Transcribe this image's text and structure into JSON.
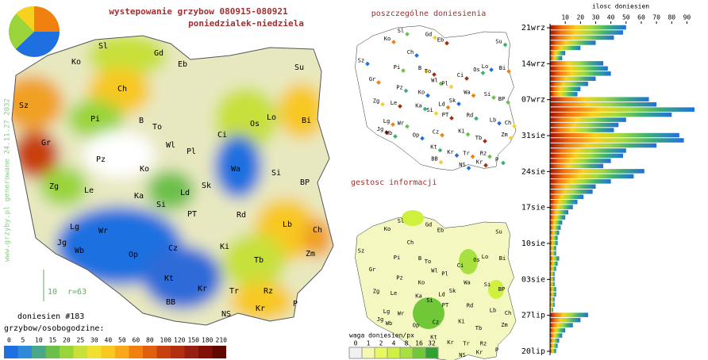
{
  "header": {
    "title": "wystepowanie grzybow 080915-080921",
    "subtitle": "poniedzialek-niedziela"
  },
  "watermark": "www.grzyby.pl generowane 24.11.27 2032",
  "scale_note": {
    "radius": "10",
    "label": "r=63"
  },
  "report_count": "doniesien #183",
  "panels": {
    "points": "poszczególne doniesienia",
    "density": "gestosc informacji"
  },
  "regions": [
    "Sz",
    "Ko",
    "Sl",
    "Gd",
    "Eb",
    "Su",
    "Ch",
    "Bi",
    "Pi",
    "B",
    "To",
    "Os",
    "Lo",
    "Gr",
    "Wl",
    "Pl",
    "Ci",
    "Pz",
    "Ko",
    "Wa",
    "Si",
    "Zg",
    "Le",
    "Ka",
    "Sk",
    "Ld",
    "BP",
    "Si",
    "PT",
    "Rd",
    "Lb",
    "Lg",
    "Wr",
    "Ch",
    "Jg",
    "Wb",
    "Op",
    "Cz",
    "Ki",
    "Zm",
    "Tb",
    "Kt",
    "Kr",
    "Tr",
    "Rz",
    "BB",
    "Kr",
    "P",
    "NS"
  ],
  "legend": {
    "title": "grzybow/osobogodzine:",
    "ticks": [
      0,
      5,
      10,
      15,
      20,
      25,
      30,
      40,
      50,
      60,
      80,
      100,
      120,
      150,
      180,
      210
    ],
    "colors": [
      "#1e6fe0",
      "#2f8ad8",
      "#4aa88a",
      "#6cc04a",
      "#9ad43a",
      "#c8e03a",
      "#f0e030",
      "#f8c820",
      "#f8a818",
      "#f08010",
      "#e06010",
      "#c84010",
      "#b03010",
      "#982010",
      "#801008",
      "#600800"
    ]
  },
  "density_legend": {
    "title": "waga doniesien/px",
    "ticks": [
      0,
      1,
      2,
      4,
      8,
      16,
      32
    ],
    "colors": [
      "#f0f0f0",
      "#f4f8b0",
      "#e8f860",
      "#d0f040",
      "#a8e040",
      "#70c838",
      "#30a030"
    ]
  },
  "chart_data": {
    "type": "bar",
    "title": "ilosc doniesien",
    "categories": [
      "21wrz",
      null,
      null,
      null,
      null,
      null,
      null,
      "14wrz",
      null,
      null,
      null,
      null,
      null,
      null,
      "07wrz",
      null,
      null,
      null,
      null,
      null,
      null,
      "31sie",
      null,
      null,
      null,
      null,
      null,
      null,
      "24sie",
      null,
      null,
      null,
      null,
      null,
      null,
      "17sie",
      null,
      null,
      null,
      null,
      null,
      null,
      "10sie",
      null,
      null,
      null,
      null,
      null,
      null,
      "03sie",
      null,
      null,
      null,
      null,
      null,
      null,
      "27lip",
      null,
      null,
      null,
      null,
      null,
      null,
      "20lip"
    ],
    "values": [
      50,
      48,
      42,
      30,
      20,
      10,
      8,
      35,
      38,
      40,
      30,
      25,
      20,
      18,
      65,
      70,
      95,
      80,
      50,
      45,
      42,
      85,
      88,
      70,
      50,
      48,
      40,
      35,
      62,
      55,
      40,
      30,
      28,
      22,
      18,
      15,
      12,
      10,
      8,
      7,
      6,
      5,
      5,
      4,
      4,
      6,
      5,
      4,
      3,
      3,
      3,
      4,
      4,
      3,
      3,
      2,
      25,
      20,
      15,
      10,
      8,
      6,
      5,
      4
    ],
    "xlim": [
      0,
      95
    ],
    "xticks": [
      10,
      20,
      30,
      40,
      50,
      60,
      70,
      80,
      90
    ]
  }
}
